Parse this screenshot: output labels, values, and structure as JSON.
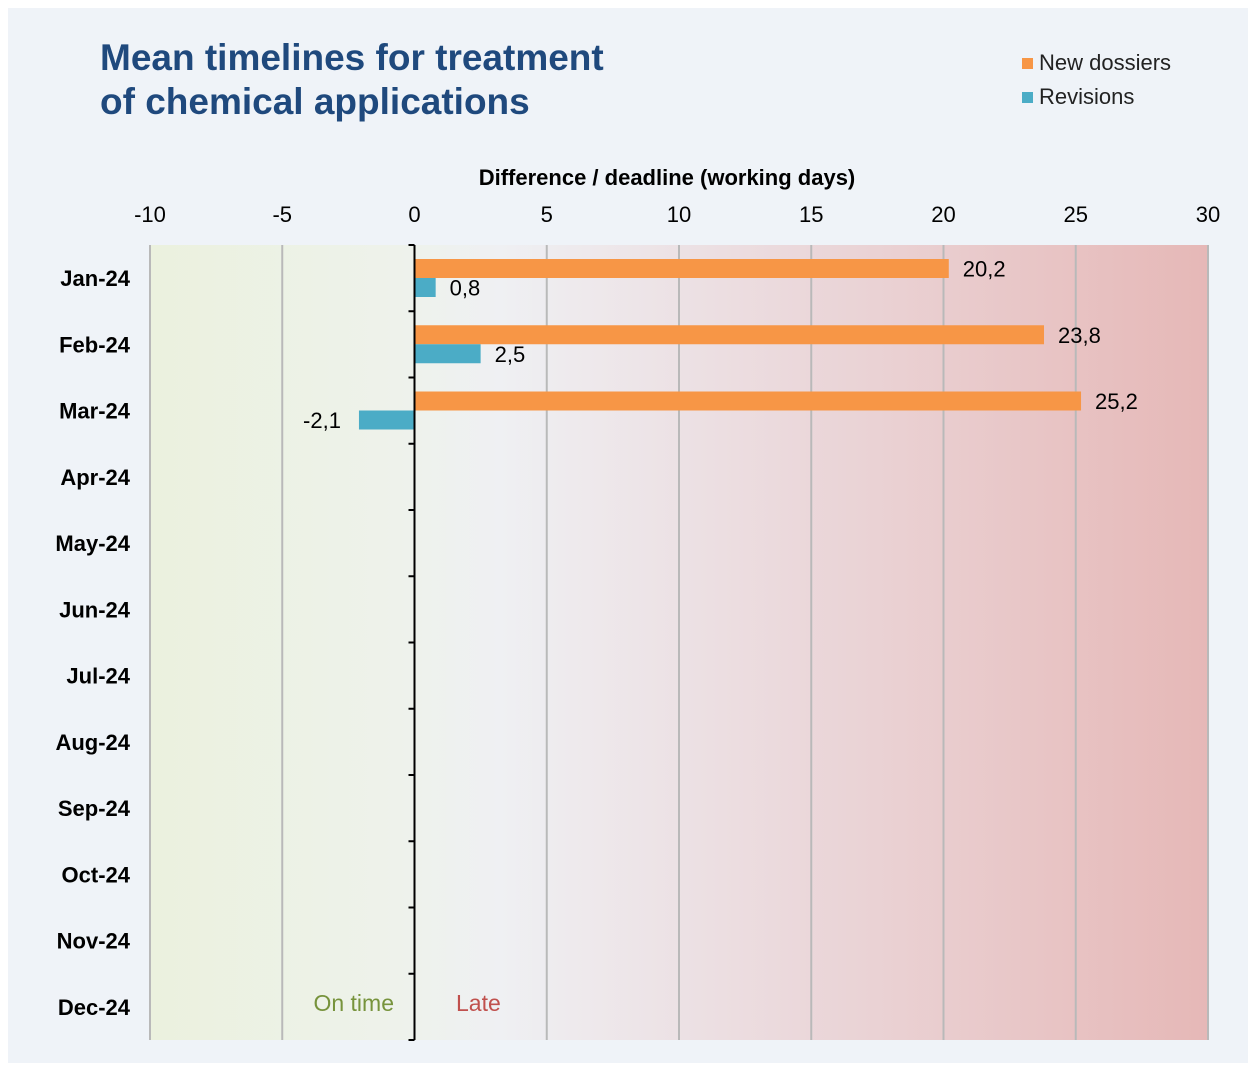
{
  "chart_data": {
    "type": "bar",
    "orientation": "horizontal",
    "title_lines": [
      "Mean timelines for treatment",
      "of chemical applications"
    ],
    "xlabel": "Difference / deadline (working days)",
    "xlim": [
      -10,
      30
    ],
    "xticks": [
      -10,
      -5,
      0,
      5,
      10,
      15,
      20,
      25,
      30
    ],
    "grid": true,
    "legend_position": "top-right",
    "categories": [
      "Jan-24",
      "Feb-24",
      "Mar-24",
      "Apr-24",
      "May-24",
      "Jun-24",
      "Jul-24",
      "Aug-24",
      "Sep-24",
      "Oct-24",
      "Nov-24",
      "Dec-24"
    ],
    "series": [
      {
        "name": "New dossiers",
        "color": "#f79646",
        "values": [
          20.2,
          23.8,
          25.2,
          null,
          null,
          null,
          null,
          null,
          null,
          null,
          null,
          null
        ],
        "labels": [
          "20,2",
          "23,8",
          "25,2"
        ]
      },
      {
        "name": "Revisions",
        "color": "#4bacc6",
        "values": [
          0.8,
          2.5,
          -2.1,
          null,
          null,
          null,
          null,
          null,
          null,
          null,
          null,
          null
        ],
        "labels": [
          "0,8",
          "2,5",
          "-2,1"
        ]
      }
    ],
    "annotations": [
      {
        "text": "On time",
        "color": "#77933c"
      },
      {
        "text": "Late",
        "color": "#c0504d"
      }
    ]
  }
}
